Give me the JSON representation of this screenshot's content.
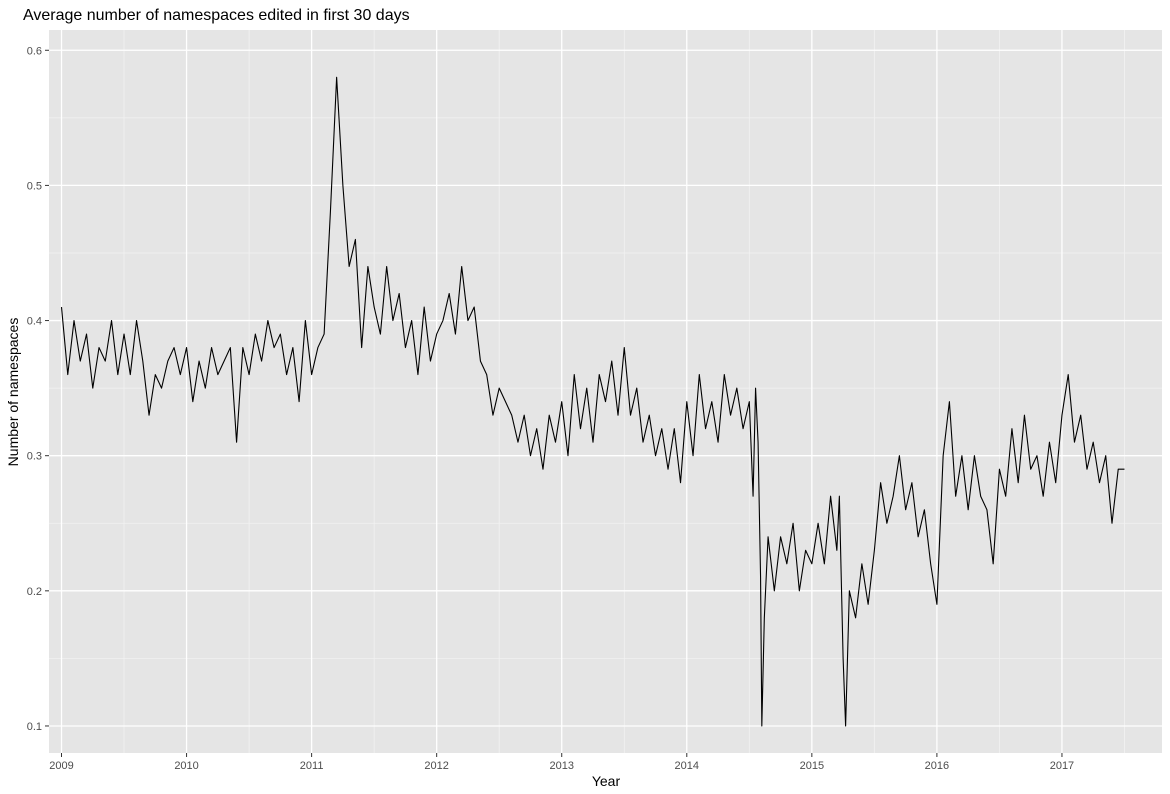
{
  "chart_data": {
    "type": "line",
    "title": "Average number of namespaces edited in first 30 days",
    "xlabel": "Year",
    "ylabel": "Number of namespaces",
    "xlim": [
      2008.9,
      2017.8
    ],
    "ylim": [
      0.08,
      0.615
    ],
    "x_ticks": [
      {
        "value": 2009,
        "label": "2009"
      },
      {
        "value": 2010,
        "label": "2010"
      },
      {
        "value": 2011,
        "label": "2011"
      },
      {
        "value": 2012,
        "label": "2012"
      },
      {
        "value": 2013,
        "label": "2013"
      },
      {
        "value": 2014,
        "label": "2014"
      },
      {
        "value": 2015,
        "label": "2015"
      },
      {
        "value": 2016,
        "label": "2016"
      },
      {
        "value": 2017,
        "label": "2017"
      }
    ],
    "y_ticks": [
      {
        "value": 0.1,
        "label": "0.1"
      },
      {
        "value": 0.2,
        "label": "0.2"
      },
      {
        "value": 0.3,
        "label": "0.3"
      },
      {
        "value": 0.4,
        "label": "0.4"
      },
      {
        "value": 0.5,
        "label": "0.5"
      },
      {
        "value": 0.6,
        "label": "0.6"
      }
    ],
    "grid": true,
    "legend": "none",
    "series": [
      {
        "color": "#000000",
        "x": [
          2009.0,
          2009.05,
          2009.1,
          2009.15,
          2009.2,
          2009.25,
          2009.3,
          2009.35,
          2009.4,
          2009.45,
          2009.5,
          2009.55,
          2009.6,
          2009.65,
          2009.7,
          2009.75,
          2009.8,
          2009.85,
          2009.9,
          2009.95,
          2010.0,
          2010.05,
          2010.1,
          2010.15,
          2010.2,
          2010.25,
          2010.3,
          2010.35,
          2010.4,
          2010.45,
          2010.5,
          2010.55,
          2010.6,
          2010.65,
          2010.7,
          2010.75,
          2010.8,
          2010.85,
          2010.9,
          2010.95,
          2011.0,
          2011.05,
          2011.1,
          2011.15,
          2011.2,
          2011.25,
          2011.3,
          2011.35,
          2011.4,
          2011.45,
          2011.5,
          2011.55,
          2011.6,
          2011.65,
          2011.7,
          2011.75,
          2011.8,
          2011.85,
          2011.9,
          2011.95,
          2012.0,
          2012.05,
          2012.1,
          2012.15,
          2012.2,
          2012.25,
          2012.3,
          2012.35,
          2012.4,
          2012.45,
          2012.5,
          2012.55,
          2012.6,
          2012.65,
          2012.7,
          2012.75,
          2012.8,
          2012.85,
          2012.9,
          2012.95,
          2013.0,
          2013.05,
          2013.1,
          2013.15,
          2013.2,
          2013.25,
          2013.3,
          2013.35,
          2013.4,
          2013.45,
          2013.5,
          2013.55,
          2013.6,
          2013.65,
          2013.7,
          2013.75,
          2013.8,
          2013.85,
          2013.9,
          2013.95,
          2014.0,
          2014.05,
          2014.1,
          2014.15,
          2014.2,
          2014.25,
          2014.3,
          2014.35,
          2014.4,
          2014.45,
          2014.5,
          2014.53,
          2014.55,
          2014.57,
          2014.59,
          2014.6,
          2014.62,
          2014.65,
          2014.7,
          2014.75,
          2014.8,
          2014.85,
          2014.9,
          2014.95,
          2015.0,
          2015.05,
          2015.1,
          2015.15,
          2015.2,
          2015.22,
          2015.25,
          2015.27,
          2015.3,
          2015.35,
          2015.4,
          2015.45,
          2015.5,
          2015.55,
          2015.6,
          2015.65,
          2015.7,
          2015.75,
          2015.8,
          2015.85,
          2015.9,
          2015.95,
          2016.0,
          2016.05,
          2016.1,
          2016.15,
          2016.2,
          2016.25,
          2016.3,
          2016.35,
          2016.4,
          2016.45,
          2016.5,
          2016.55,
          2016.6,
          2016.65,
          2016.7,
          2016.75,
          2016.8,
          2016.85,
          2016.9,
          2016.95,
          2017.0,
          2017.05,
          2017.1,
          2017.15,
          2017.2,
          2017.25,
          2017.3,
          2017.35,
          2017.4,
          2017.45,
          2017.5
        ],
        "y": [
          0.41,
          0.36,
          0.4,
          0.37,
          0.39,
          0.35,
          0.38,
          0.37,
          0.4,
          0.36,
          0.39,
          0.36,
          0.4,
          0.37,
          0.33,
          0.36,
          0.35,
          0.37,
          0.38,
          0.36,
          0.38,
          0.34,
          0.37,
          0.35,
          0.38,
          0.36,
          0.37,
          0.38,
          0.31,
          0.38,
          0.36,
          0.39,
          0.37,
          0.4,
          0.38,
          0.39,
          0.36,
          0.38,
          0.34,
          0.4,
          0.36,
          0.38,
          0.39,
          0.48,
          0.58,
          0.5,
          0.44,
          0.46,
          0.38,
          0.44,
          0.41,
          0.39,
          0.44,
          0.4,
          0.42,
          0.38,
          0.4,
          0.36,
          0.41,
          0.37,
          0.39,
          0.4,
          0.42,
          0.39,
          0.44,
          0.4,
          0.41,
          0.37,
          0.36,
          0.33,
          0.35,
          0.34,
          0.33,
          0.31,
          0.33,
          0.3,
          0.32,
          0.29,
          0.33,
          0.31,
          0.34,
          0.3,
          0.36,
          0.32,
          0.35,
          0.31,
          0.36,
          0.34,
          0.37,
          0.33,
          0.38,
          0.33,
          0.35,
          0.31,
          0.33,
          0.3,
          0.32,
          0.29,
          0.32,
          0.28,
          0.34,
          0.3,
          0.36,
          0.32,
          0.34,
          0.31,
          0.36,
          0.33,
          0.35,
          0.32,
          0.34,
          0.27,
          0.35,
          0.31,
          0.21,
          0.1,
          0.18,
          0.24,
          0.2,
          0.24,
          0.22,
          0.25,
          0.2,
          0.23,
          0.22,
          0.25,
          0.22,
          0.27,
          0.23,
          0.27,
          0.15,
          0.1,
          0.2,
          0.18,
          0.22,
          0.19,
          0.23,
          0.28,
          0.25,
          0.27,
          0.3,
          0.26,
          0.28,
          0.24,
          0.26,
          0.22,
          0.19,
          0.3,
          0.34,
          0.27,
          0.3,
          0.26,
          0.3,
          0.27,
          0.26,
          0.22,
          0.29,
          0.27,
          0.32,
          0.28,
          0.33,
          0.29,
          0.3,
          0.27,
          0.31,
          0.28,
          0.33,
          0.36,
          0.31,
          0.33,
          0.29,
          0.31,
          0.28,
          0.3,
          0.25,
          0.29,
          0.29
        ]
      }
    ]
  }
}
